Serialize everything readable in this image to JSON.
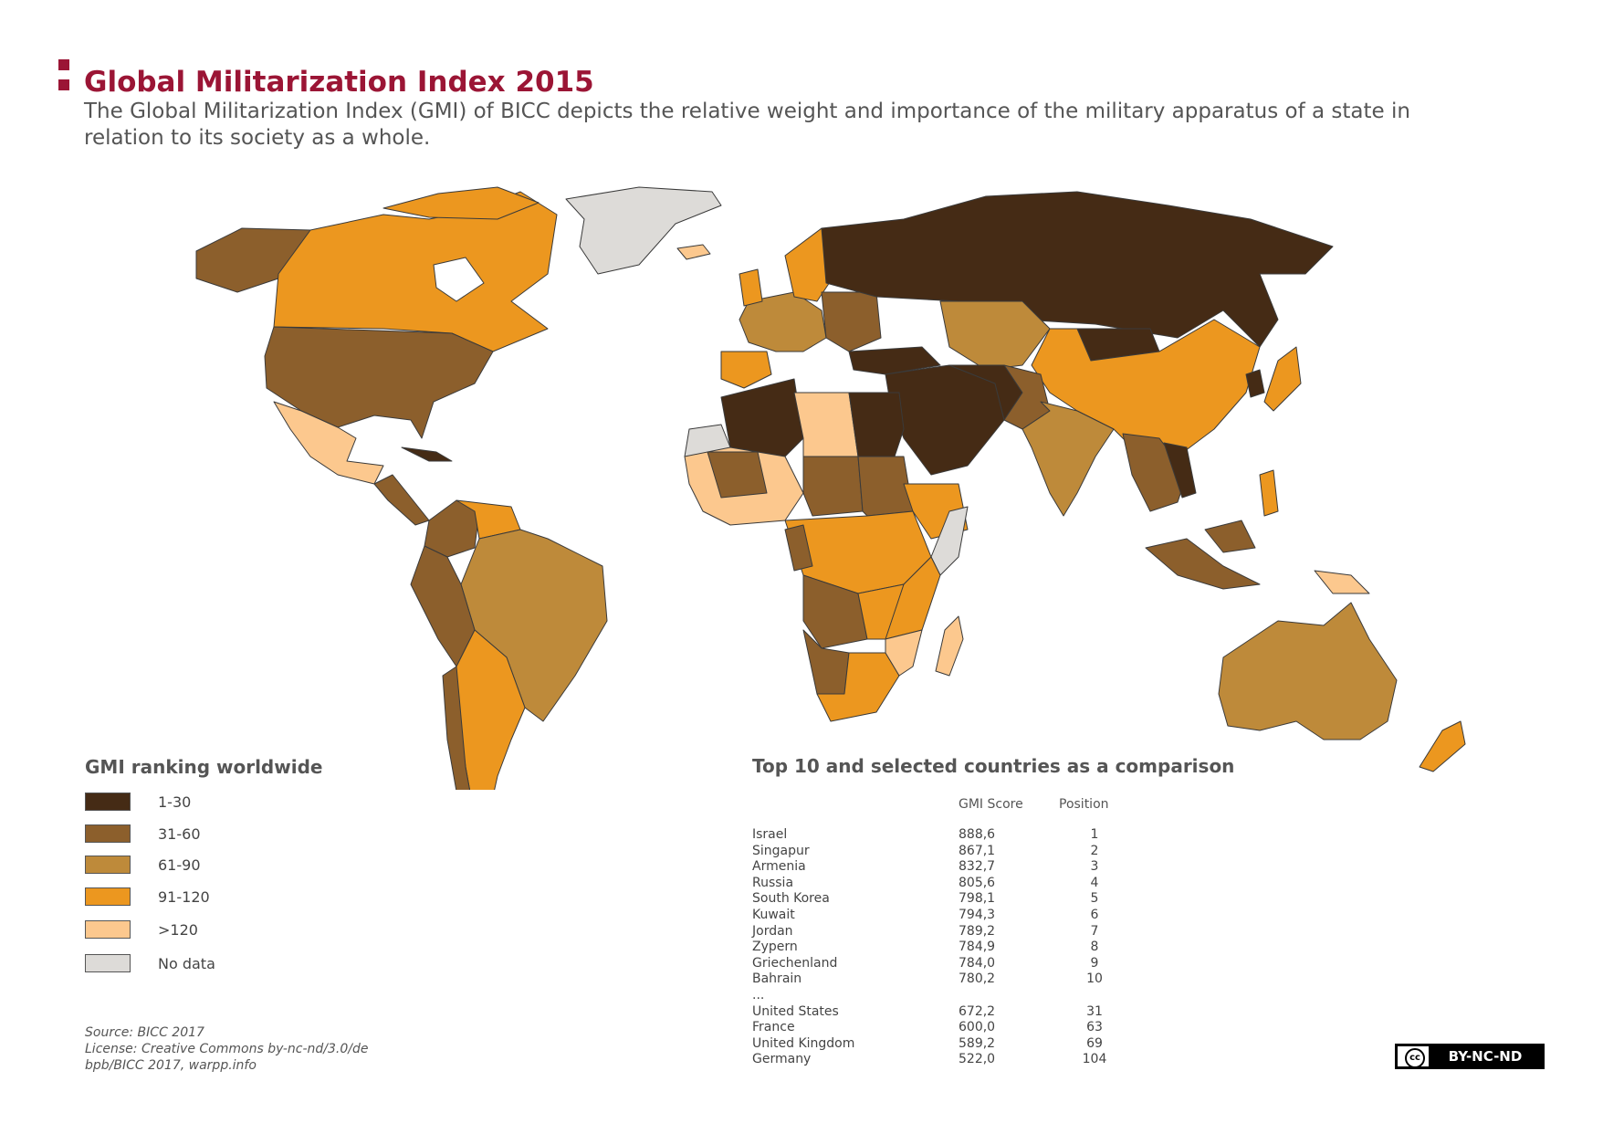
{
  "header": {
    "title": "Global Militarization Index 2015",
    "subtitle": "The Global Militarization Index (GMI) of BICC depicts the relative weight and importance of the military apparatus of a state in relation to its society as a whole.",
    "accent_color": "#9b1535"
  },
  "legend": {
    "title": "GMI ranking worldwide",
    "items": [
      {
        "label": "1-30",
        "color": "#452b15"
      },
      {
        "label": "31-60",
        "color": "#8c5f2c"
      },
      {
        "label": "61-90",
        "color": "#be8a3a"
      },
      {
        "label": "91-120",
        "color": "#ec971f"
      },
      {
        "label": ">120",
        "color": "#fcc88e"
      },
      {
        "label": "No data",
        "color": "#dddbd8"
      }
    ]
  },
  "source": {
    "line1": "Source: BICC 2017",
    "line2": "License: Creative Commons by-nc-nd/3.0/de",
    "line3": "bpb/BICC 2017, warpp.info"
  },
  "table": {
    "title": "Top 10 and selected countries as a comparison",
    "col_score": "GMI Score",
    "col_position": "Position",
    "rows": [
      {
        "country": "Israel",
        "score": "888,6",
        "position": "1"
      },
      {
        "country": "Singapur",
        "score": "867,1",
        "position": "2"
      },
      {
        "country": "Armenia",
        "score": "832,7",
        "position": "3"
      },
      {
        "country": "Russia",
        "score": "805,6",
        "position": "4"
      },
      {
        "country": "South Korea",
        "score": "798,1",
        "position": "5"
      },
      {
        "country": "Kuwait",
        "score": "794,3",
        "position": "6"
      },
      {
        "country": "Jordan",
        "score": "789,2",
        "position": "7"
      },
      {
        "country": "Zypern",
        "score": "784,9",
        "position": "8"
      },
      {
        "country": "Griechenland",
        "score": "784,0",
        "position": "9"
      },
      {
        "country": "Bahrain",
        "score": "780,2",
        "position": "10"
      },
      {
        "country": "...",
        "score": "",
        "position": ""
      },
      {
        "country": "United States",
        "score": "672,2",
        "position": "31"
      },
      {
        "country": "France",
        "score": "600,0",
        "position": "63"
      },
      {
        "country": "United Kingdom",
        "score": "589,2",
        "position": "69"
      },
      {
        "country": "Germany",
        "score": "522,0",
        "position": "104"
      }
    ]
  },
  "license_badge": {
    "cc": "cc",
    "text": "BY-NC-ND"
  },
  "map": {
    "ocean": "#ffffff",
    "border": "#3a3a3a"
  }
}
